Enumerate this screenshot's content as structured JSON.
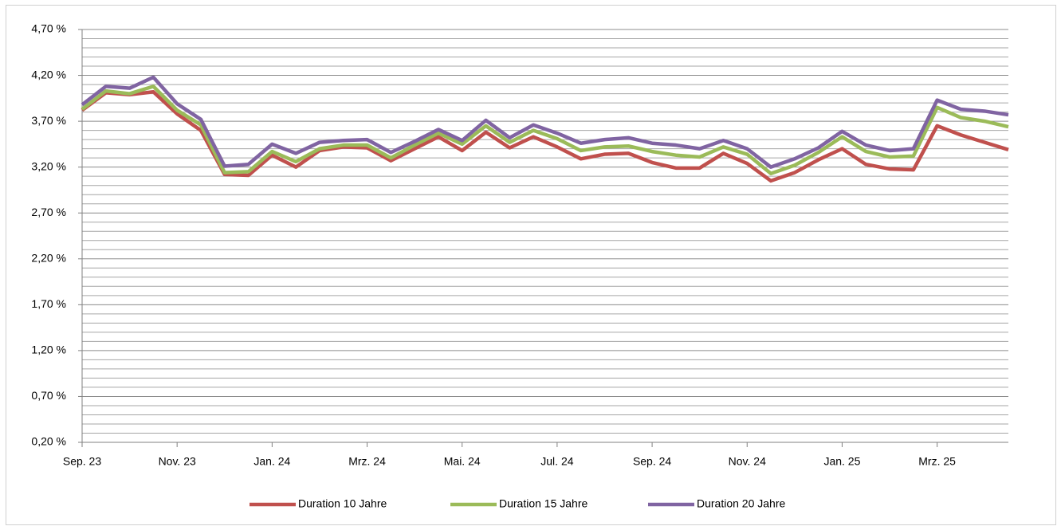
{
  "chart_data": {
    "type": "line",
    "categories": [
      "Sep. 23",
      null,
      null,
      null,
      "Nov. 23",
      null,
      null,
      null,
      "Jan. 24",
      null,
      null,
      null,
      "Mrz. 24",
      null,
      null,
      null,
      "Mai. 24",
      null,
      null,
      null,
      "Jul. 24",
      null,
      null,
      null,
      "Sep. 24",
      null,
      null,
      null,
      "Nov. 24",
      null,
      null,
      null,
      "Jan. 25",
      null,
      null,
      null,
      "Mrz. 25",
      null,
      null,
      null
    ],
    "series": [
      {
        "name": "Duration 10 Jahre",
        "color": "#c0504d",
        "values": [
          3.82,
          4.01,
          3.99,
          4.02,
          3.78,
          3.6,
          3.12,
          3.11,
          3.33,
          3.2,
          3.38,
          3.42,
          3.41,
          3.27,
          3.4,
          3.53,
          3.38,
          3.58,
          3.41,
          3.53,
          3.42,
          3.29,
          3.34,
          3.35,
          3.25,
          3.19,
          3.19,
          3.35,
          3.24,
          3.05,
          3.14,
          3.28,
          3.4,
          3.23,
          3.18,
          3.17,
          3.65,
          3.55,
          3.47,
          3.39
        ]
      },
      {
        "name": "Duration 15 Jahre",
        "color": "#9bbb59",
        "values": [
          3.83,
          4.03,
          4.0,
          4.08,
          3.82,
          3.66,
          3.14,
          3.15,
          3.37,
          3.26,
          3.4,
          3.44,
          3.44,
          3.3,
          3.44,
          3.57,
          3.45,
          3.65,
          3.47,
          3.6,
          3.51,
          3.38,
          3.42,
          3.43,
          3.37,
          3.33,
          3.31,
          3.42,
          3.34,
          3.13,
          3.22,
          3.36,
          3.53,
          3.37,
          3.31,
          3.32,
          3.85,
          3.74,
          3.7,
          3.64
        ]
      },
      {
        "name": "Duration 20 Jahre",
        "color": "#8064a2",
        "values": [
          3.88,
          4.08,
          4.06,
          4.18,
          3.89,
          3.72,
          3.21,
          3.23,
          3.45,
          3.35,
          3.47,
          3.49,
          3.5,
          3.36,
          3.48,
          3.61,
          3.49,
          3.71,
          3.52,
          3.66,
          3.57,
          3.46,
          3.5,
          3.52,
          3.46,
          3.44,
          3.4,
          3.49,
          3.4,
          3.2,
          3.29,
          3.41,
          3.59,
          3.44,
          3.38,
          3.4,
          3.93,
          3.83,
          3.81,
          3.77
        ]
      }
    ],
    "ylim": [
      0.2,
      4.7
    ],
    "yticks": [
      {
        "value": 0.2,
        "label": "0,20 %"
      },
      {
        "value": 0.7,
        "label": "0,70 %"
      },
      {
        "value": 1.2,
        "label": "1,20 %"
      },
      {
        "value": 1.7,
        "label": "1,70 %"
      },
      {
        "value": 2.2,
        "label": "2,20 %"
      },
      {
        "value": 2.7,
        "label": "2,70 %"
      },
      {
        "value": 3.2,
        "label": "3,20 %"
      },
      {
        "value": 3.7,
        "label": "3,70 %"
      },
      {
        "value": 4.2,
        "label": "4,20 %"
      },
      {
        "value": 4.7,
        "label": "4,70 %"
      }
    ],
    "y_minor_ticks": [
      0.3,
      0.4,
      0.5,
      0.6,
      0.8,
      0.9,
      1.0,
      1.1,
      1.3,
      1.4,
      1.5,
      1.6,
      1.8,
      1.9,
      2.0,
      2.1,
      2.3,
      2.4,
      2.5,
      2.6,
      2.8,
      2.9,
      3.0,
      3.1,
      3.3,
      3.4,
      3.5,
      3.6,
      3.8,
      3.9,
      4.0,
      4.1,
      4.3,
      4.4,
      4.5,
      4.6
    ],
    "grid": true,
    "legend": "bottom"
  }
}
